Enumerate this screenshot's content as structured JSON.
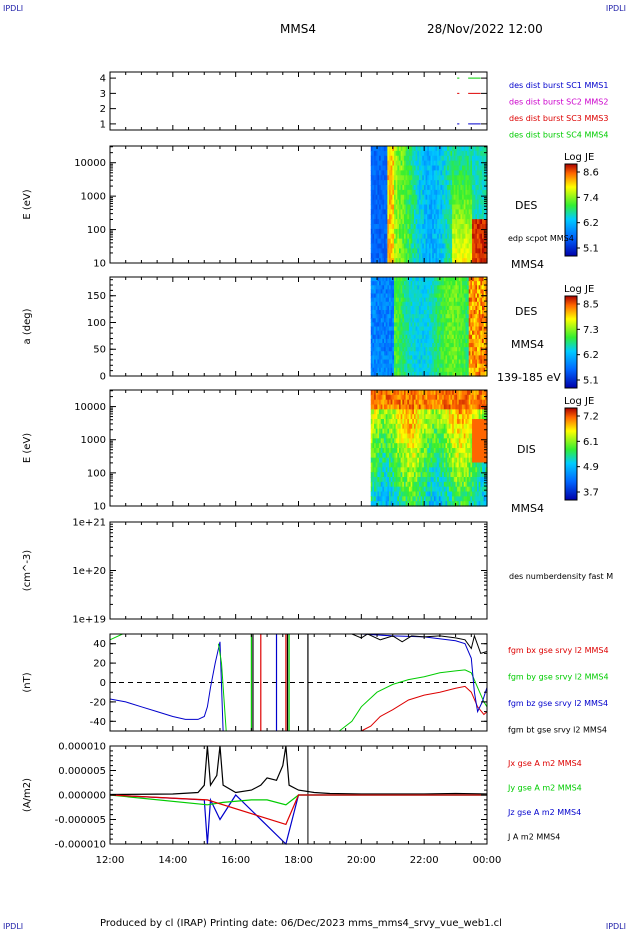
{
  "corner_labels": {
    "tl": "IPDLI",
    "tr": "IPDLI",
    "bl": "IPDLI",
    "br": "IPDLI"
  },
  "header": {
    "spacecraft": "MMS4",
    "datetime": "28/Nov/2022 12:00"
  },
  "footer": {
    "text": "Produced by cl (IRAP)   Printing date: 06/Dec/2023   mms_mms4_srvy_vue_web1.cl"
  },
  "colors": {
    "red": "#dd0000",
    "green": "#00cc00",
    "blue": "#0000cc",
    "magenta": "#cc00cc",
    "black": "#000000"
  },
  "chart_data": [
    {
      "type": "line",
      "panel": "burst-availability",
      "x_ticks": [
        "12:00",
        "14:00",
        "16:00",
        "18:00",
        "20:00",
        "22:00",
        "00:00"
      ],
      "y_ticks": [
        "1",
        "2",
        "3",
        "4"
      ],
      "ylim": [
        0.6,
        4.4
      ],
      "legend": [
        {
          "label": "des dist burst SC1 MMS1",
          "color": "#0000cc"
        },
        {
          "label": "des dist burst SC2 MMS2",
          "color": "#cc00cc"
        },
        {
          "label": "des dist burst SC3 MMS3",
          "color": "#dd0000"
        },
        {
          "label": "des dist burst SC4 MMS4",
          "color": "#00cc00"
        }
      ],
      "series": [
        {
          "level": 4,
          "color": "#00cc00",
          "segments": [
            [
              23.05,
              23.12
            ],
            [
              23.4,
              23.8
            ]
          ]
        },
        {
          "level": 3,
          "color": "#dd0000",
          "segments": [
            [
              23.05,
              23.12
            ],
            [
              23.4,
              23.8
            ]
          ]
        },
        {
          "level": 1,
          "color": "#0000cc",
          "segments": [
            [
              23.05,
              23.12
            ],
            [
              23.4,
              23.8
            ]
          ]
        }
      ]
    },
    {
      "type": "heatmap",
      "panel": "des-energy",
      "ylabel": "E (eV)",
      "y_ticks": [
        "10",
        "100",
        "1000",
        "10000"
      ],
      "y_scale": "log",
      "data_start_hour": 20.3,
      "labels": [
        "DES",
        "edp scpot MMS4",
        "MMS4"
      ],
      "colorbar": {
        "title": "Log JE",
        "ticks": [
          "8.6",
          "7.4",
          "6.2",
          "5.1"
        ],
        "range": [
          5.1,
          8.6
        ]
      }
    },
    {
      "type": "heatmap",
      "panel": "des-pitch-angle",
      "ylabel": "a (deg)",
      "y_ticks": [
        "0",
        "50",
        "100",
        "150"
      ],
      "data_start_hour": 20.3,
      "labels": [
        "DES",
        "MMS4",
        "139-185 eV"
      ],
      "colorbar": {
        "title": "Log JE",
        "ticks": [
          "8.5",
          "7.3",
          "6.2",
          "5.1"
        ],
        "range": [
          5.1,
          8.5
        ]
      }
    },
    {
      "type": "heatmap",
      "panel": "dis-energy",
      "ylabel": "E (eV)",
      "y_ticks": [
        "10",
        "100",
        "1000",
        "10000"
      ],
      "y_scale": "log",
      "data_start_hour": 20.3,
      "labels": [
        "DIS",
        "MMS4"
      ],
      "colorbar": {
        "title": "Log JE",
        "ticks": [
          "7.2",
          "6.1",
          "4.9",
          "3.7"
        ],
        "range": [
          3.7,
          7.2
        ]
      }
    },
    {
      "type": "line",
      "panel": "density",
      "ylabel": "(cm^-3)",
      "y_ticks": [
        "1e+19",
        "1e+20",
        "1e+21"
      ],
      "y_scale": "log",
      "legend": [
        {
          "label": "des numberdensity fast M",
          "color": "#000000"
        }
      ],
      "series": []
    },
    {
      "type": "line",
      "panel": "magnetic-field",
      "ylabel": "(nT)",
      "y_ticks": [
        "-40",
        "-20",
        "0",
        "20",
        "40"
      ],
      "ylim": [
        -50,
        50
      ],
      "legend": [
        {
          "label": "fgm bx gse srvy l2 MMS4",
          "color": "#dd0000"
        },
        {
          "label": "fgm by gse srvy l2 MMS4",
          "color": "#00cc00"
        },
        {
          "label": "fgm bz gse srvy l2 MMS4",
          "color": "#0000cc"
        },
        {
          "label": "fgm bt gse srvy l2 MMS4",
          "color": "#000000"
        }
      ],
      "series": [
        {
          "name": "bz",
          "color": "#0000cc",
          "points": [
            [
              12,
              -17
            ],
            [
              12.5,
              -20
            ],
            [
              13,
              -25
            ],
            [
              13.5,
              -30
            ],
            [
              14,
              -35
            ],
            [
              14.4,
              -38
            ],
            [
              14.8,
              -38
            ],
            [
              15.0,
              -35
            ],
            [
              15.1,
              -25
            ],
            [
              15.2,
              -5
            ],
            [
              15.35,
              20
            ],
            [
              15.5,
              42
            ],
            [
              15.6,
              -55
            ]
          ]
        },
        {
          "name": "by-early",
          "color": "#00cc00",
          "points": [
            [
              12,
              44
            ],
            [
              12.4,
              50
            ]
          ]
        },
        {
          "name": "by-drop",
          "color": "#00cc00",
          "points": [
            [
              15.45,
              40
            ],
            [
              15.55,
              20
            ],
            [
              15.7,
              -55
            ]
          ]
        },
        {
          "name": "by",
          "color": "#00cc00",
          "points": [
            [
              19.3,
              -55
            ],
            [
              19.7,
              -40
            ],
            [
              20,
              -25
            ],
            [
              20.5,
              -10
            ],
            [
              21,
              -2
            ],
            [
              21.5,
              3
            ],
            [
              22,
              6
            ],
            [
              22.5,
              10
            ],
            [
              23,
              12
            ],
            [
              23.3,
              13
            ],
            [
              23.5,
              10
            ],
            [
              23.7,
              -5
            ],
            [
              23.9,
              -20
            ],
            [
              24,
              -25
            ]
          ]
        },
        {
          "name": "bx",
          "color": "#dd0000",
          "points": [
            [
              20,
              -55
            ],
            [
              20.3,
              -45
            ],
            [
              20.6,
              -35
            ],
            [
              21,
              -28
            ],
            [
              21.5,
              -18
            ],
            [
              22,
              -13
            ],
            [
              22.5,
              -10
            ],
            [
              23,
              -6
            ],
            [
              23.3,
              -4
            ],
            [
              23.5,
              -10
            ],
            [
              23.7,
              -25
            ],
            [
              23.9,
              -33
            ],
            [
              24,
              -30
            ]
          ]
        },
        {
          "name": "bz-late",
          "color": "#0000cc",
          "points": [
            [
              20,
              50
            ],
            [
              21,
              48
            ],
            [
              22,
              47
            ],
            [
              23,
              43
            ],
            [
              23.3,
              40
            ],
            [
              23.5,
              25
            ],
            [
              23.6,
              -10
            ],
            [
              23.7,
              -30
            ],
            [
              23.85,
              -20
            ],
            [
              24,
              -5
            ]
          ]
        },
        {
          "name": "bt",
          "color": "#000000",
          "points": [
            [
              19.7,
              50
            ],
            [
              20,
              46
            ],
            [
              20.2,
              50
            ],
            [
              20.6,
              44
            ],
            [
              21,
              48
            ],
            [
              21.3,
              42
            ],
            [
              21.6,
              48
            ],
            [
              22,
              47
            ],
            [
              22.5,
              48
            ],
            [
              23,
              46
            ],
            [
              23.3,
              44
            ],
            [
              23.5,
              35
            ],
            [
              23.6,
              48
            ],
            [
              23.8,
              30
            ],
            [
              24,
              32
            ]
          ]
        }
      ],
      "vertical_markers": [
        {
          "x": 16.5,
          "color": "#00cc00"
        },
        {
          "x": 16.55,
          "color": "#000000"
        },
        {
          "x": 16.8,
          "color": "#dd0000"
        },
        {
          "x": 17.3,
          "color": "#0000cc"
        },
        {
          "x": 17.6,
          "color": "#dd0000"
        },
        {
          "x": 17.65,
          "color": "#000000"
        },
        {
          "x": 17.7,
          "color": "#00cc00"
        },
        {
          "x": 18.3,
          "color": "#000000"
        }
      ],
      "reference_line": {
        "y": 0,
        "style": "dashed"
      }
    },
    {
      "type": "line",
      "panel": "current-density",
      "ylabel": "(A/m2)",
      "y_ticks": [
        "-0.000010",
        "-0.000005",
        "0.000000",
        "0.000005",
        "0.000010"
      ],
      "ylim": [
        -1e-05,
        1e-05
      ],
      "xlabel_ticks": [
        "12:00",
        "14:00",
        "16:00",
        "18:00",
        "20:00",
        "22:00",
        "00:00"
      ],
      "legend": [
        {
          "label": "Jx gse A m2 MMS4",
          "color": "#dd0000"
        },
        {
          "label": "Jy gse A m2 MMS4",
          "color": "#00cc00"
        },
        {
          "label": "Jz gse A m2 MMS4",
          "color": "#0000cc"
        },
        {
          "label": "J A m2 MMS4",
          "color": "#000000"
        }
      ],
      "series": [
        {
          "name": "J",
          "color": "#000000",
          "points": [
            [
              12,
              1e-07
            ],
            [
              14,
              2e-07
            ],
            [
              14.8,
              5e-07
            ],
            [
              15.0,
              2e-06
            ],
            [
              15.1,
              1e-05
            ],
            [
              15.2,
              2e-06
            ],
            [
              15.4,
              4e-06
            ],
            [
              15.5,
              1e-05
            ],
            [
              15.6,
              2e-06
            ],
            [
              16,
              5e-07
            ],
            [
              16.5,
              1e-06
            ],
            [
              16.8,
              2e-06
            ],
            [
              17,
              3.5e-06
            ],
            [
              17.3,
              3e-06
            ],
            [
              17.5,
              6e-06
            ],
            [
              17.6,
              1e-05
            ],
            [
              17.7,
              2e-06
            ],
            [
              18,
              1e-06
            ],
            [
              18.5,
              5e-07
            ],
            [
              19,
              3e-07
            ],
            [
              20,
              2e-07
            ],
            [
              22,
              2e-07
            ],
            [
              23,
              3e-07
            ],
            [
              24,
              2e-07
            ]
          ]
        },
        {
          "name": "Jz",
          "color": "#0000cc",
          "points": [
            [
              12,
              0
            ],
            [
              15.0,
              -1e-06
            ],
            [
              15.1,
              -1e-05
            ],
            [
              15.2,
              -1e-06
            ],
            [
              15.5,
              -5e-06
            ],
            [
              16,
              0
            ],
            [
              17.6,
              -1e-05
            ],
            [
              18,
              0
            ],
            [
              24,
              0
            ]
          ]
        },
        {
          "name": "Jy",
          "color": "#00cc00",
          "points": [
            [
              12,
              0
            ],
            [
              15.1,
              -2e-06
            ],
            [
              15.6,
              -1.5e-06
            ],
            [
              16.5,
              -1e-06
            ],
            [
              17,
              -1e-06
            ],
            [
              17.6,
              -2e-06
            ],
            [
              18,
              0
            ],
            [
              24,
              0
            ]
          ]
        },
        {
          "name": "Jx",
          "color": "#dd0000",
          "points": [
            [
              12,
              0
            ],
            [
              15.1,
              -1e-06
            ],
            [
              17.6,
              -6e-06
            ],
            [
              18,
              0
            ],
            [
              24,
              0
            ]
          ]
        }
      ]
    }
  ]
}
